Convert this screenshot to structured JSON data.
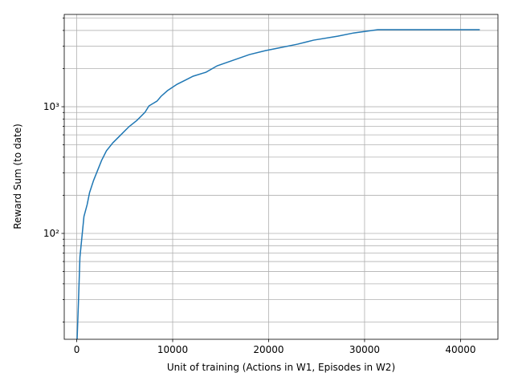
{
  "chart_data": {
    "type": "line",
    "x_label": "Unit of training (Actions in W1, Episodes in W2)",
    "y_label": "Reward Sum (to date)",
    "log_y": true,
    "grid": true,
    "xlim": [
      -1300,
      43900
    ],
    "xticks": [
      0,
      10000,
      20000,
      30000,
      40000
    ],
    "ylim": [
      14.6,
      5350
    ],
    "yticks": [
      {
        "value": 100,
        "label": "10²"
      },
      {
        "value": 1000,
        "label": "10³"
      }
    ],
    "yminor": [
      20,
      30,
      40,
      50,
      60,
      70,
      80,
      90,
      200,
      300,
      400,
      500,
      600,
      700,
      800,
      900,
      2000,
      3000,
      4000,
      5000
    ],
    "x": [
      0,
      167,
      335,
      753,
      1088,
      1339,
      1757,
      2092,
      2594,
      3096,
      3766,
      4603,
      5439,
      6276,
      7113,
      7531,
      8368,
      8787,
      9456,
      10460,
      11297,
      12134,
      13473,
      14644,
      16318,
      17992,
      19665,
      20921,
      23013,
      24686,
      27197,
      28870,
      31381,
      33891,
      42008
    ],
    "series": [
      {
        "name": "Reward Sum",
        "color": "#1f77b4",
        "values": [
          12,
          27,
          65,
          136,
          169,
          210,
          262,
          303,
          377,
          449,
          519,
          600,
          695,
          780,
          903,
          1015,
          1107,
          1208,
          1339,
          1504,
          1618,
          1741,
          1872,
          2104,
          2329,
          2578,
          2772,
          2897,
          3117,
          3352,
          3603,
          3822,
          4057,
          4057,
          4057
        ]
      }
    ]
  }
}
